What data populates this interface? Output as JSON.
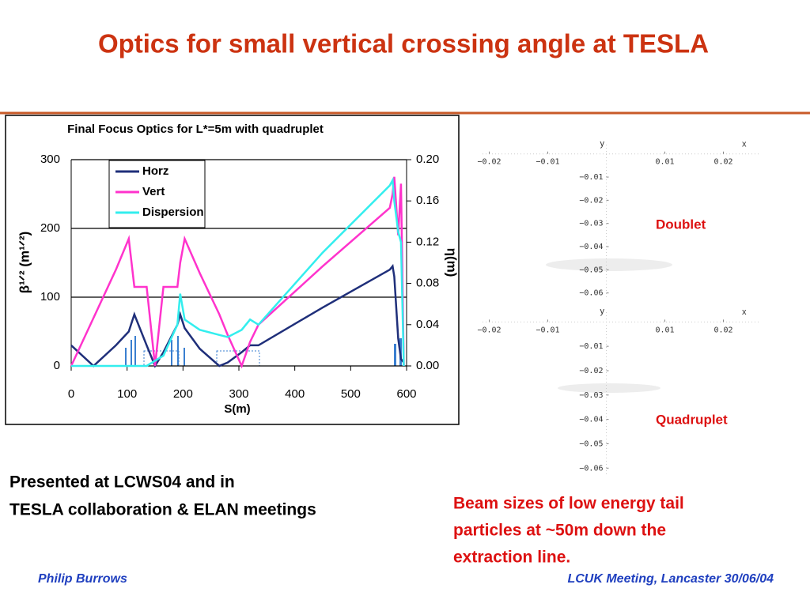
{
  "title": "Optics for small vertical crossing angle at TESLA",
  "left_text": [
    "Presented at LCWS04 and in",
    "TESLA collaboration & ELAN meetings"
  ],
  "right_text": [
    "Beam sizes of low energy tail",
    "particles at ~50m down the",
    "extraction line."
  ],
  "footer": {
    "author": "Philip Burrows",
    "event": "LCUK Meeting, Lancaster 30/06/04"
  },
  "chart_data": [
    {
      "type": "line",
      "title": "Final Focus Optics for L*=5m with quadruplet",
      "x_label": "S(m)",
      "y_label": "β¹ᐟ² (m¹ᐟ²)",
      "y2_label": "η(m)",
      "x": [
        0,
        40,
        80,
        103,
        113,
        135,
        150,
        165,
        190,
        195,
        203,
        230,
        265,
        280,
        305,
        320,
        335,
        450,
        570,
        575,
        578,
        585,
        590,
        595
      ],
      "series": [
        {
          "name": "Horz",
          "color": "#1f2f7a",
          "values": [
            30,
            0,
            30,
            50,
            75,
            30,
            0,
            20,
            60,
            75,
            55,
            25,
            0,
            5,
            20,
            30,
            30,
            85,
            140,
            145,
            130,
            40,
            10,
            5
          ]
        },
        {
          "name": "Vert",
          "color": "#ff33cc",
          "values": [
            0,
            70,
            140,
            185,
            115,
            115,
            0,
            115,
            115,
            150,
            185,
            135,
            75,
            45,
            0,
            35,
            60,
            145,
            230,
            250,
            275,
            190,
            265,
            0
          ]
        },
        {
          "name": "Dispersion",
          "color": "#33eeee",
          "axis": "y2",
          "values": [
            0,
            0,
            0,
            0,
            0,
            0,
            0.005,
            0.01,
            0.04,
            0.07,
            0.045,
            0.035,
            0.03,
            0.028,
            0.035,
            0.045,
            0.04,
            0.11,
            0.175,
            0.18,
            0.16,
            0.13,
            0.12,
            0
          ]
        }
      ],
      "xlim": [
        0,
        600
      ],
      "xticks": [
        0,
        100,
        200,
        300,
        400,
        500,
        600
      ],
      "ylim": [
        0,
        300
      ],
      "yticks": [
        0,
        100,
        200,
        300
      ],
      "y2lim": [
        0,
        0.2
      ],
      "y2ticks": [
        {
          "value": 0,
          "label": "0.00"
        },
        0.04,
        0.08,
        0.12,
        0.16,
        {
          "value": 0.2,
          "label": "0.20"
        }
      ],
      "grid": true,
      "legend": "upper left"
    },
    {
      "type": "scatter",
      "annotation": "Doublet",
      "x_label": "x",
      "y_label": "y",
      "xlim": [
        -0.0225,
        0.0275
      ],
      "ylim": [
        -0.0625,
        0.004
      ],
      "xticks": [
        {
          "value": -0.02,
          "label": "−0.02"
        },
        {
          "value": -0.01,
          "label": "−0.01"
        },
        0.01,
        0.02
      ],
      "yticks": [
        {
          "value": -0.01,
          "label": "−0.01"
        },
        {
          "value": -0.02,
          "label": "−0.02"
        },
        {
          "value": -0.03,
          "label": "−0.03"
        },
        {
          "value": -0.04,
          "label": "−0.04"
        },
        {
          "value": -0.05,
          "label": "−0.05"
        },
        {
          "value": -0.06,
          "label": "−0.06"
        }
      ]
    },
    {
      "type": "scatter",
      "annotation": "Quadruplet",
      "x_label": "x",
      "y_label": "y",
      "xlim": [
        -0.0225,
        0.0275
      ],
      "ylim": [
        -0.0625,
        0.004
      ],
      "xticks": [
        {
          "value": -0.02,
          "label": "−0.02"
        },
        {
          "value": -0.01,
          "label": "−0.01"
        },
        0.01,
        0.02
      ],
      "yticks": [
        {
          "value": -0.01,
          "label": "−0.01"
        },
        {
          "value": -0.02,
          "label": "−0.02"
        },
        {
          "value": -0.03,
          "label": "−0.03"
        },
        {
          "value": -0.04,
          "label": "−0.04"
        },
        {
          "value": -0.05,
          "label": "−0.05"
        },
        {
          "value": -0.06,
          "label": "−0.06"
        }
      ]
    }
  ]
}
